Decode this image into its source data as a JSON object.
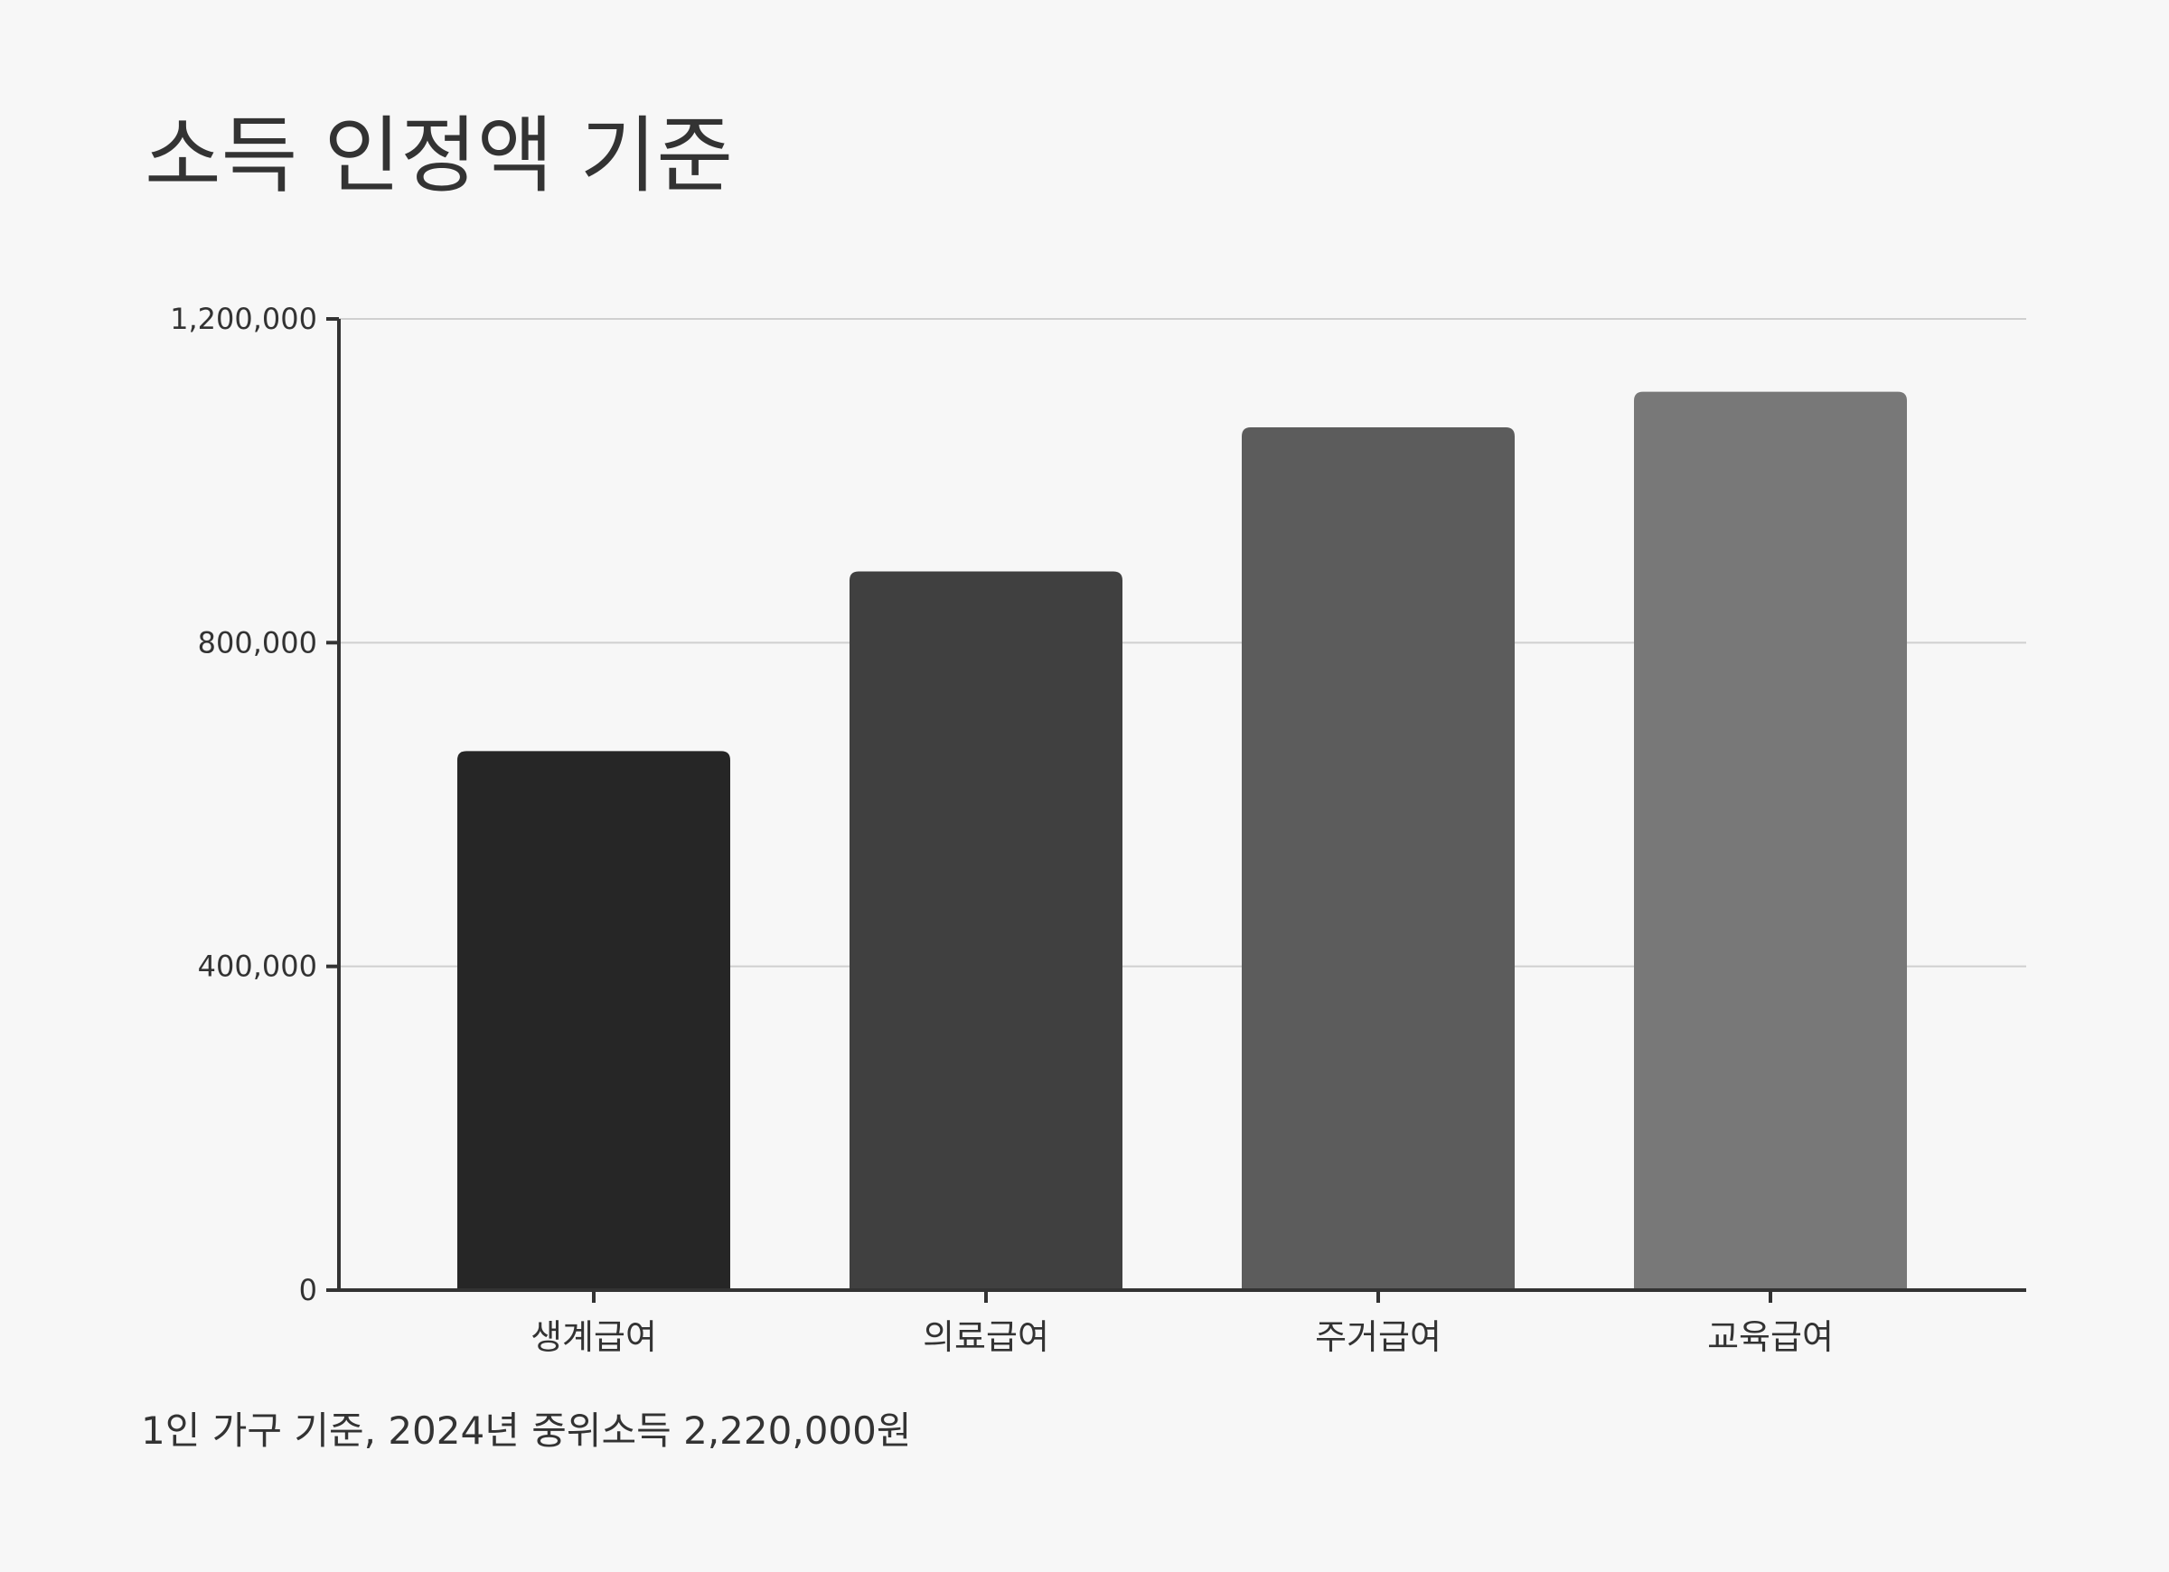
{
  "chart_data": {
    "type": "bar",
    "title": "소득 인정액 기준",
    "categories": [
      "생계급여",
      "의료급여",
      "주거급여",
      "교육급여"
    ],
    "values": [
      666000,
      888000,
      1066000,
      1110000
    ],
    "colors": [
      "#262626",
      "#404040",
      "#5c5c5c",
      "#787878"
    ],
    "ylim": [
      0,
      1200000
    ],
    "yticks": [
      0,
      400000,
      800000,
      1200000
    ],
    "ytick_labels": [
      "0",
      "400,000",
      "800,000",
      "1,200,000"
    ],
    "xlabel": "",
    "ylabel": "",
    "grid": "horizontal",
    "legend": "none"
  },
  "footnote": "1인 가구 기준, 2024년 중위소득 2,220,000원"
}
